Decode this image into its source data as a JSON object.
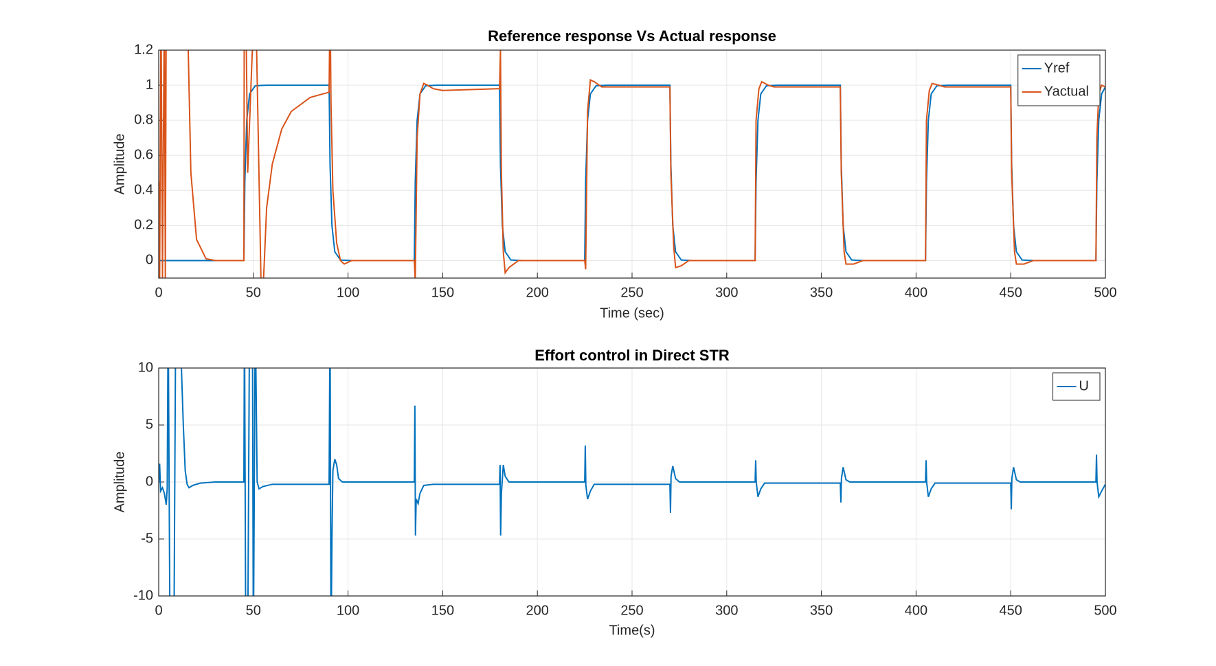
{
  "chart_data": [
    {
      "type": "line",
      "title": "Reference response Vs Actual response",
      "xlabel": "Time (sec)",
      "ylabel": "Amplitude",
      "xlim": [
        0,
        500
      ],
      "xticks": [
        0,
        50,
        100,
        150,
        200,
        250,
        300,
        350,
        400,
        450,
        500
      ],
      "ylim": [
        -0.1,
        1.2
      ],
      "yticks": [
        0,
        0.2,
        0.4,
        0.6,
        0.8,
        1,
        1.2
      ],
      "grid": true,
      "legend": "upper right",
      "series": [
        {
          "name": "Yref",
          "color": "#0072bd",
          "x": [
            0,
            45,
            45.5,
            46.5,
            48,
            51,
            57,
            90,
            90.5,
            91.5,
            93,
            96,
            102,
            135,
            135.5,
            136.5,
            138,
            141,
            147,
            180,
            180.5,
            181.5,
            183,
            186,
            192,
            225,
            225.5,
            226.5,
            228,
            231,
            237,
            270,
            270.5,
            271.5,
            273,
            276,
            282,
            315,
            315.5,
            316.5,
            318,
            321,
            327,
            360,
            360.5,
            361.5,
            363,
            366,
            372,
            405,
            405.5,
            406.5,
            408,
            411,
            417,
            450,
            450.5,
            451.5,
            453,
            456,
            462,
            495,
            495.5,
            496.5,
            498,
            500
          ],
          "values": [
            0,
            0,
            0.45,
            0.8,
            0.95,
            0.997,
            1,
            1,
            0.55,
            0.2,
            0.05,
            0.003,
            0,
            0,
            0.45,
            0.8,
            0.95,
            0.997,
            1,
            1,
            0.55,
            0.2,
            0.05,
            0.003,
            0,
            0,
            0.45,
            0.8,
            0.95,
            0.997,
            1,
            1,
            0.55,
            0.2,
            0.05,
            0.003,
            0,
            0,
            0.45,
            0.8,
            0.95,
            0.997,
            1,
            1,
            0.55,
            0.2,
            0.05,
            0.003,
            0,
            0,
            0.45,
            0.8,
            0.95,
            0.997,
            1,
            1,
            0.55,
            0.2,
            0.05,
            0.003,
            0,
            0,
            0.45,
            0.8,
            0.95,
            0.99
          ]
        },
        {
          "name": "Yactual",
          "color": "#d95319",
          "x": [
            0,
            0.5,
            1.2,
            2,
            3,
            3.5,
            4,
            15,
            17,
            20,
            25,
            30,
            45,
            45.2,
            46,
            47,
            50.5,
            51.2,
            54,
            55,
            57,
            60,
            65,
            70,
            80,
            90,
            90.5,
            91,
            92,
            94,
            96,
            98,
            102,
            135,
            135.5,
            136.5,
            138,
            140,
            142,
            145,
            150,
            180,
            180.5,
            181,
            182,
            183,
            185,
            190,
            225,
            225.5,
            226.5,
            228,
            230,
            234,
            270,
            270.5,
            272,
            273,
            276,
            280,
            315,
            315.5,
            317,
            318.5,
            322,
            325,
            360,
            360.5,
            362,
            363,
            367,
            372,
            405,
            405.5,
            407,
            408.5,
            412,
            415,
            450,
            450.5,
            452,
            453,
            457,
            462,
            495,
            495.5,
            496.5,
            498,
            500
          ],
          "values": [
            0.45,
            -0.1,
            1.5,
            -0.1,
            1.5,
            -0.1,
            1.5,
            1.5,
            0.5,
            0.12,
            0.01,
            0,
            0,
            1.5,
            1.5,
            0.5,
            1.5,
            1.5,
            -0.1,
            -0.2,
            0.3,
            0.55,
            0.75,
            0.85,
            0.93,
            0.96,
            1.5,
            0.9,
            0.4,
            0.1,
            0,
            -0.02,
            0,
            0,
            -0.12,
            0.7,
            0.95,
            1.01,
            1.0,
            0.98,
            0.97,
            0.98,
            1.2,
            0.5,
            0.05,
            -0.07,
            -0.04,
            0,
            0,
            -0.05,
            0.85,
            1.03,
            1.02,
            0.99,
            0.99,
            0.5,
            0.08,
            -0.04,
            -0.03,
            0,
            0,
            0.8,
            0.98,
            1.02,
            1.0,
            0.99,
            0.99,
            0.5,
            0.05,
            -0.02,
            -0.02,
            0,
            0,
            0.8,
            0.97,
            1.01,
            1.0,
            0.99,
            0.99,
            0.5,
            0.05,
            -0.02,
            -0.02,
            0,
            0,
            0.7,
            0.95,
            1.0,
            0.99
          ]
        }
      ]
    },
    {
      "type": "line",
      "title": "Effort control in Direct STR",
      "xlabel": "Time(s)",
      "ylabel": "Amplitude",
      "xlim": [
        0,
        500
      ],
      "xticks": [
        0,
        50,
        100,
        150,
        200,
        250,
        300,
        350,
        400,
        450,
        500
      ],
      "ylim": [
        -10,
        10
      ],
      "yticks": [
        -10,
        -5,
        0,
        5,
        10
      ],
      "grid": true,
      "legend": "upper right",
      "series": [
        {
          "name": "U",
          "color": "#0072bd",
          "x": [
            0,
            0.5,
            1,
            2,
            3,
            4,
            4.5,
            5,
            6,
            8,
            9,
            11,
            12,
            13,
            14,
            15,
            16,
            18,
            22,
            30,
            45,
            45.3,
            46,
            47,
            48,
            49.5,
            50,
            51,
            52,
            53,
            55,
            60,
            90,
            90.5,
            91,
            91.5,
            92,
            93,
            94,
            95,
            97,
            135,
            135.3,
            135.6,
            136,
            137,
            138,
            140,
            145,
            180,
            180.3,
            180.6,
            181,
            182,
            183,
            185,
            225,
            225.3,
            225.6,
            226.5,
            228,
            230,
            270,
            270.3,
            270.6,
            271.5,
            273,
            275,
            315,
            315.3,
            315.6,
            316.5,
            318,
            320,
            360,
            360.3,
            360.6,
            361.5,
            363,
            365,
            405,
            405.3,
            405.6,
            406.5,
            408,
            410,
            450,
            450.3,
            450.6,
            451.5,
            453,
            455,
            495,
            495.3,
            495.6,
            496.5,
            498,
            500
          ],
          "values": [
            0,
            1.6,
            -0.8,
            -0.5,
            -1,
            -2,
            -0.5,
            15,
            -15,
            -15,
            15,
            15,
            10,
            5,
            1,
            -0.2,
            -0.5,
            -0.3,
            -0.1,
            0,
            0,
            15,
            -15,
            -15,
            15,
            15,
            -15,
            15,
            0,
            -0.6,
            -0.4,
            -0.2,
            -0.2,
            15,
            -15,
            -5,
            1,
            2,
            1.5,
            0.3,
            0,
            0,
            6.7,
            -4.7,
            -1.5,
            -1.9,
            -1,
            -0.3,
            -0.2,
            -0.2,
            1.5,
            -4.7,
            -1,
            1.5,
            0.5,
            0,
            0,
            3.2,
            -0.3,
            -1.5,
            -0.8,
            -0.2,
            -0.2,
            -2.7,
            0.5,
            1.4,
            0.3,
            0,
            0,
            1.9,
            0,
            -1.3,
            -0.6,
            -0.1,
            -0.1,
            -1.8,
            0.3,
            1.3,
            0.2,
            0,
            0,
            1.9,
            0,
            -1.3,
            -0.6,
            -0.1,
            -0.1,
            -2.4,
            0.3,
            1.3,
            0.2,
            0,
            0,
            2.4,
            0,
            -1.3,
            -0.8,
            -0.2
          ]
        }
      ]
    }
  ]
}
